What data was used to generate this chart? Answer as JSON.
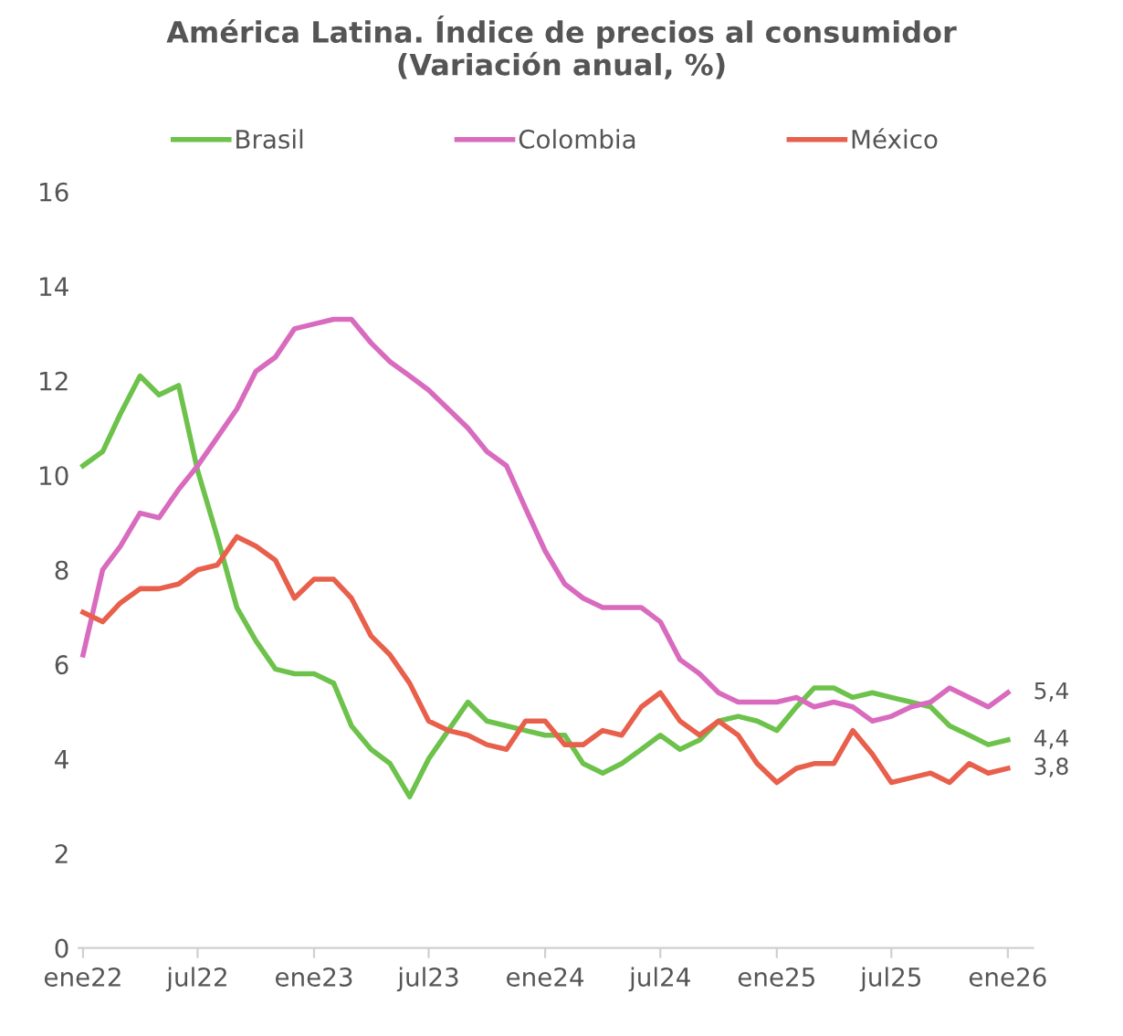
{
  "chart_data": {
    "type": "line",
    "title": "América Latina. Índice de precios al consumidor\n(Variación anual, %)",
    "x": [
      "2022-01",
      "2022-02",
      "2022-03",
      "2022-04",
      "2022-05",
      "2022-06",
      "2022-07",
      "2022-08",
      "2022-09",
      "2022-10",
      "2022-11",
      "2022-12",
      "2023-01",
      "2023-02",
      "2023-03",
      "2023-04",
      "2023-05",
      "2023-06",
      "2023-07",
      "2023-08",
      "2023-09",
      "2023-10",
      "2023-11",
      "2023-12",
      "2024-01",
      "2024-02",
      "2024-03",
      "2024-04",
      "2024-05",
      "2024-06",
      "2024-07",
      "2024-08",
      "2024-09",
      "2024-10",
      "2024-11",
      "2024-12",
      "2025-01",
      "2025-02",
      "2025-03",
      "2025-04",
      "2025-05",
      "2025-06",
      "2025-07",
      "2025-08",
      "2025-09",
      "2025-10",
      "2025-11",
      "2025-12",
      "2026-01"
    ],
    "series": [
      {
        "name": "Brasil",
        "color": "#6cc24a",
        "values": [
          10.2,
          10.5,
          11.3,
          12.1,
          11.7,
          11.9,
          10.1,
          8.7,
          7.2,
          6.5,
          5.9,
          5.8,
          5.8,
          5.6,
          4.7,
          4.2,
          3.9,
          3.2,
          4.0,
          4.6,
          5.2,
          4.8,
          4.7,
          4.6,
          4.5,
          4.5,
          3.9,
          3.7,
          3.9,
          4.2,
          4.5,
          4.2,
          4.4,
          4.8,
          4.9,
          4.8,
          4.6,
          5.1,
          5.5,
          5.5,
          5.3,
          5.4,
          5.3,
          5.2,
          5.1,
          4.7,
          4.5,
          4.3,
          4.4
        ],
        "value_labels": [
          null,
          null,
          null,
          null,
          null,
          null,
          null,
          null,
          null,
          null,
          null,
          null,
          null,
          null,
          null,
          null,
          null,
          null,
          null,
          null,
          null,
          null,
          null,
          null,
          null,
          null,
          null,
          null,
          null,
          null,
          null,
          null,
          null,
          null,
          null,
          null,
          null,
          null,
          null,
          null,
          null,
          null,
          null,
          null,
          null,
          null,
          null,
          null,
          "4,4"
        ]
      },
      {
        "name": "Colombia",
        "color": "#d96bbf",
        "values": [
          6.2,
          8.0,
          8.5,
          9.2,
          9.1,
          9.7,
          10.2,
          10.8,
          11.4,
          12.2,
          12.5,
          13.1,
          13.2,
          13.3,
          13.3,
          12.8,
          12.4,
          12.1,
          11.8,
          11.4,
          11.0,
          10.5,
          10.2,
          9.3,
          8.4,
          7.7,
          7.4,
          7.2,
          7.2,
          7.2,
          6.9,
          6.1,
          5.8,
          5.4,
          5.2,
          5.2,
          5.2,
          5.3,
          5.1,
          5.2,
          5.1,
          4.8,
          4.9,
          5.1,
          5.2,
          5.5,
          5.3,
          5.1,
          5.4
        ],
        "value_labels": [
          null,
          null,
          null,
          null,
          null,
          null,
          null,
          null,
          null,
          null,
          null,
          null,
          null,
          null,
          null,
          null,
          null,
          null,
          null,
          null,
          null,
          null,
          null,
          null,
          null,
          null,
          null,
          null,
          null,
          null,
          null,
          null,
          null,
          null,
          null,
          null,
          null,
          null,
          null,
          null,
          null,
          null,
          null,
          null,
          null,
          null,
          null,
          null,
          "5,4"
        ]
      },
      {
        "name": "México",
        "color": "#e8604c",
        "values": [
          7.1,
          6.9,
          7.3,
          7.6,
          7.6,
          7.7,
          8.0,
          8.1,
          8.7,
          8.5,
          8.2,
          7.4,
          7.8,
          7.8,
          7.4,
          6.6,
          6.2,
          5.6,
          4.8,
          4.6,
          4.5,
          4.3,
          4.2,
          4.8,
          4.8,
          4.3,
          4.3,
          4.6,
          4.5,
          5.1,
          5.4,
          4.8,
          4.5,
          4.8,
          4.5,
          3.9,
          3.5,
          3.8,
          3.9,
          3.9,
          4.6,
          4.1,
          3.5,
          3.6,
          3.7,
          3.5,
          3.9,
          3.7,
          3.8
        ],
        "value_labels": [
          null,
          null,
          null,
          null,
          null,
          null,
          null,
          null,
          null,
          null,
          null,
          null,
          null,
          null,
          null,
          null,
          null,
          null,
          null,
          null,
          null,
          null,
          null,
          null,
          null,
          null,
          null,
          null,
          null,
          null,
          null,
          null,
          null,
          null,
          null,
          null,
          null,
          null,
          null,
          null,
          null,
          null,
          null,
          null,
          null,
          null,
          null,
          null,
          "3,8"
        ]
      }
    ],
    "xlim": [
      "2021-12-25",
      "2026-02-10"
    ],
    "xticks": [
      {
        "value": "2022-01",
        "label": "ene22"
      },
      {
        "value": "2022-07",
        "label": "jul22"
      },
      {
        "value": "2023-01",
        "label": "ene23"
      },
      {
        "value": "2023-07",
        "label": "jul23"
      },
      {
        "value": "2024-01",
        "label": "ene24"
      },
      {
        "value": "2024-07",
        "label": "jul24"
      },
      {
        "value": "2025-01",
        "label": "ene25"
      },
      {
        "value": "2025-07",
        "label": "jul25"
      },
      {
        "value": "2026-01",
        "label": "ene26"
      }
    ],
    "ylim": [
      0,
      16
    ],
    "yticks": [
      0,
      2,
      4,
      6,
      8,
      10,
      12,
      14,
      16
    ],
    "grid": false,
    "legend": "top",
    "marker": "none",
    "line_style": "solid"
  }
}
